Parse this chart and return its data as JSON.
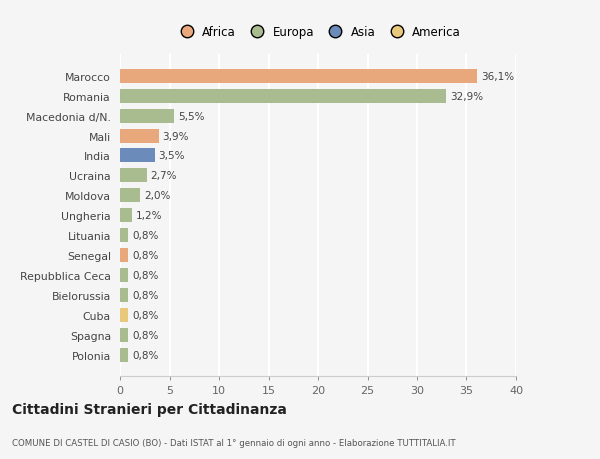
{
  "categories": [
    "Polonia",
    "Spagna",
    "Cuba",
    "Bielorussia",
    "Repubblica Ceca",
    "Senegal",
    "Lituania",
    "Ungheria",
    "Moldova",
    "Ucraina",
    "India",
    "Mali",
    "Macedonia d/N.",
    "Romania",
    "Marocco"
  ],
  "values": [
    0.8,
    0.8,
    0.8,
    0.8,
    0.8,
    0.8,
    0.8,
    1.2,
    2.0,
    2.7,
    3.5,
    3.9,
    5.5,
    32.9,
    36.1
  ],
  "labels": [
    "0,8%",
    "0,8%",
    "0,8%",
    "0,8%",
    "0,8%",
    "0,8%",
    "0,8%",
    "1,2%",
    "2,0%",
    "2,7%",
    "3,5%",
    "3,9%",
    "5,5%",
    "32,9%",
    "36,1%"
  ],
  "colors": [
    "#a8bc8f",
    "#a8bc8f",
    "#e8c87a",
    "#a8bc8f",
    "#a8bc8f",
    "#e8a87c",
    "#a8bc8f",
    "#a8bc8f",
    "#a8bc8f",
    "#a8bc8f",
    "#6b8cba",
    "#e8a87c",
    "#a8bc8f",
    "#a8bc8f",
    "#e8a87c"
  ],
  "continent_colors": {
    "Africa": "#e8a87c",
    "Europa": "#a8bc8f",
    "Asia": "#6b8cba",
    "America": "#e8c87a"
  },
  "title": "Cittadini Stranieri per Cittadinanza",
  "subtitle": "COMUNE DI CASTEL DI CASIO (BO) - Dati ISTAT al 1° gennaio di ogni anno - Elaborazione TUTTITALIA.IT",
  "xlim": [
    0,
    40
  ],
  "xticks": [
    0,
    5,
    10,
    15,
    20,
    25,
    30,
    35,
    40
  ],
  "background_color": "#f5f5f5",
  "grid_color": "#ffffff",
  "bar_height": 0.7
}
